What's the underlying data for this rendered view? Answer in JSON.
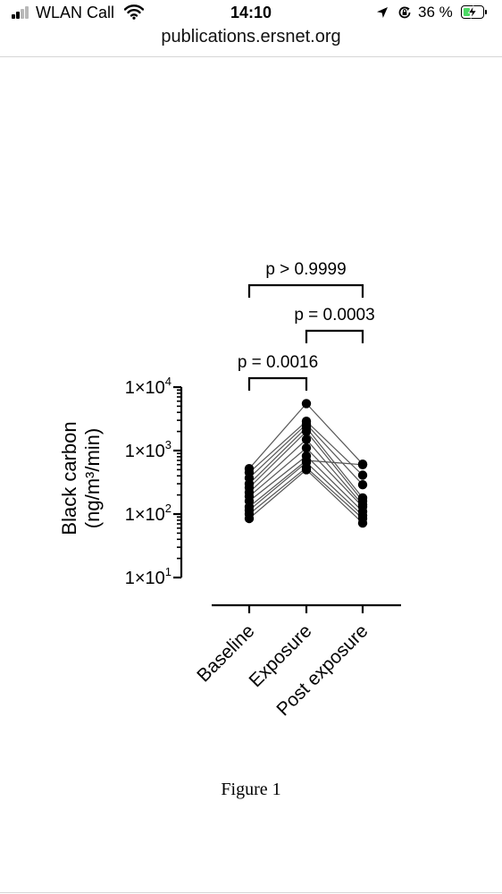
{
  "status_bar": {
    "carrier": "WLAN Call",
    "time": "14:10",
    "battery_percent": "36 %",
    "battery_level": 0.36,
    "icons": [
      "signal-icon",
      "wifi-icon",
      "location-arrow-icon",
      "orientation-lock-icon",
      "battery-charging-icon"
    ]
  },
  "browser": {
    "url": "publications.ersnet.org"
  },
  "chart_data": {
    "type": "scatter",
    "style": "paired dot plot with connecting lines",
    "y_scale": "log",
    "ylim": [
      10,
      10000
    ],
    "ylabel_line1": "Black carbon",
    "ylabel_line2": "(ng/m³/min)",
    "yticks": [
      {
        "value": 10,
        "label": "1×10",
        "exp": "1"
      },
      {
        "value": 100,
        "label": "1×10",
        "exp": "2"
      },
      {
        "value": 1000,
        "label": "1×10",
        "exp": "3"
      },
      {
        "value": 10000,
        "label": "1×10",
        "exp": "4"
      }
    ],
    "categories": [
      "Baseline",
      "Exposure",
      "Post exposure"
    ],
    "subjects": [
      [
        520,
        5500,
        610
      ],
      [
        450,
        2900,
        410
      ],
      [
        370,
        2600,
        290
      ],
      [
        300,
        2300,
        180
      ],
      [
        260,
        2000,
        160
      ],
      [
        220,
        1500,
        140
      ],
      [
        190,
        1100,
        130
      ],
      [
        160,
        820,
        110
      ],
      [
        130,
        700,
        600
      ],
      [
        115,
        650,
        95
      ],
      [
        100,
        540,
        85
      ],
      [
        85,
        500,
        72
      ]
    ],
    "marker_color": "#000000",
    "line_color": "#555555",
    "comparisons": [
      {
        "from": 0,
        "to": 1,
        "label": "p = 0.0016"
      },
      {
        "from": 1,
        "to": 2,
        "label": "p = 0.0003"
      },
      {
        "from": 0,
        "to": 2,
        "label": "p > 0.9999"
      }
    ]
  },
  "figure": {
    "caption": "Figure 1"
  }
}
